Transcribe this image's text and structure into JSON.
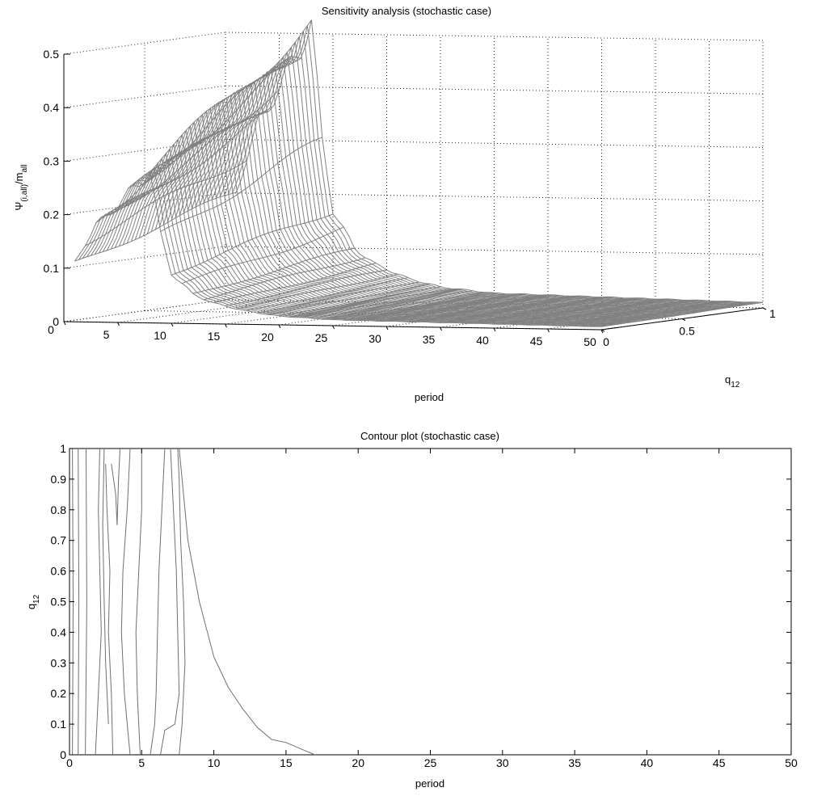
{
  "chart_data": [
    {
      "type": "surface",
      "title": "Sensitivity analysis (stochastic case)",
      "xlabel": "period",
      "ylabel": "q",
      "ylabel_sub": "12",
      "zlabel_base": "Ψ",
      "zlabel_sub1": "(i,all)",
      "zlabel_mid": "/m",
      "zlabel_sub2": "all",
      "xlim": [
        0,
        50
      ],
      "ylim": [
        0,
        1
      ],
      "zlim": [
        0,
        0.5
      ],
      "x_ticks": [
        0,
        5,
        10,
        15,
        20,
        25,
        30,
        35,
        40,
        45,
        50
      ],
      "y_ticks": [
        0,
        0.5,
        1
      ],
      "z_ticks": [
        0,
        0.1,
        0.2,
        0.3,
        0.4,
        0.5
      ],
      "grid": true,
      "surface_color": "#808080",
      "peak_profile_periods": [
        1,
        2,
        3,
        4,
        5,
        6,
        7,
        8,
        9,
        10,
        12,
        14,
        17,
        20,
        25,
        50
      ],
      "peak_profile_values": [
        0.2,
        0.27,
        0.33,
        0.36,
        0.4,
        0.44,
        0.47,
        0.52,
        0.3,
        0.17,
        0.1,
        0.07,
        0.045,
        0.03,
        0.02,
        0.01
      ]
    },
    {
      "type": "contour",
      "title": "Contour plot (stochastic case)",
      "xlabel": "period",
      "ylabel": "q",
      "ylabel_sub": "12",
      "xlim": [
        0,
        50
      ],
      "ylim": [
        0,
        1
      ],
      "x_ticks": [
        0,
        5,
        10,
        15,
        20,
        25,
        30,
        35,
        40,
        45,
        50
      ],
      "y_ticks": [
        0,
        0.1,
        0.2,
        0.3,
        0.4,
        0.5,
        0.6,
        0.7,
        0.8,
        0.9,
        1
      ],
      "line_color": "#707070",
      "contours": [
        {
          "points": [
            [
              0.2,
              0
            ],
            [
              0.25,
              0.5
            ],
            [
              0.2,
              1
            ]
          ]
        },
        {
          "points": [
            [
              0.6,
              0
            ],
            [
              0.65,
              0.5
            ],
            [
              0.6,
              1
            ]
          ]
        },
        {
          "points": [
            [
              1.1,
              0
            ],
            [
              1.2,
              0.5
            ],
            [
              1.15,
              1
            ]
          ]
        },
        {
          "points": [
            [
              1.8,
              0
            ],
            [
              2.0,
              0.2
            ],
            [
              2.2,
              0.4
            ],
            [
              2.1,
              0.6
            ],
            [
              2.0,
              0.8
            ],
            [
              2.1,
              1
            ]
          ]
        },
        {
          "points": [
            [
              2.7,
              0.1
            ],
            [
              2.5,
              0.3
            ],
            [
              2.4,
              0.5
            ],
            [
              2.3,
              0.75
            ],
            [
              2.4,
              1
            ]
          ]
        },
        {
          "points": [
            [
              3.0,
              0
            ],
            [
              2.9,
              0.2
            ],
            [
              2.7,
              0.4
            ],
            [
              2.8,
              0.6
            ],
            [
              2.6,
              0.8
            ],
            [
              2.5,
              0.95
            ]
          ]
        },
        {
          "points": [
            [
              2.9,
              0.95
            ],
            [
              3.2,
              0.85
            ],
            [
              3.3,
              0.75
            ],
            [
              3.4,
              0.9
            ],
            [
              3.5,
              1
            ]
          ]
        },
        {
          "points": [
            [
              4.2,
              0
            ],
            [
              3.8,
              0.2
            ],
            [
              3.6,
              0.4
            ],
            [
              3.7,
              0.6
            ],
            [
              4.0,
              0.8
            ],
            [
              4.2,
              1
            ]
          ]
        },
        {
          "points": [
            [
              4.9,
              0
            ],
            [
              4.7,
              0.2
            ],
            [
              4.6,
              0.4
            ],
            [
              4.8,
              0.6
            ],
            [
              5.0,
              0.8
            ],
            [
              5.0,
              1
            ]
          ]
        },
        {
          "points": [
            [
              5.6,
              0
            ],
            [
              5.9,
              0.1
            ],
            [
              6.0,
              0.2
            ],
            [
              6.1,
              0.4
            ],
            [
              6.2,
              0.6
            ],
            [
              6.4,
              0.8
            ],
            [
              6.6,
              1
            ]
          ]
        },
        {
          "points": [
            [
              6.3,
              0
            ],
            [
              6.6,
              0.08
            ],
            [
              7.3,
              0.1
            ],
            [
              7.6,
              0.2
            ],
            [
              7.5,
              0.4
            ],
            [
              7.4,
              0.6
            ],
            [
              7.2,
              0.8
            ],
            [
              7.0,
              1
            ]
          ]
        },
        {
          "points": [
            [
              7.6,
              0
            ],
            [
              7.8,
              0.1
            ],
            [
              8.0,
              0.3
            ],
            [
              7.9,
              0.5
            ],
            [
              7.7,
              0.7
            ],
            [
              7.6,
              0.9
            ],
            [
              7.5,
              1
            ]
          ]
        },
        {
          "points": [
            [
              7.6,
              1
            ],
            [
              8.2,
              0.7
            ],
            [
              9.0,
              0.5
            ],
            [
              10.0,
              0.32
            ],
            [
              11.0,
              0.22
            ],
            [
              12.0,
              0.15
            ],
            [
              13.0,
              0.09
            ],
            [
              14.0,
              0.05
            ],
            [
              15.0,
              0.04
            ],
            [
              16.0,
              0.02
            ],
            [
              17.0,
              0
            ]
          ]
        }
      ]
    }
  ]
}
